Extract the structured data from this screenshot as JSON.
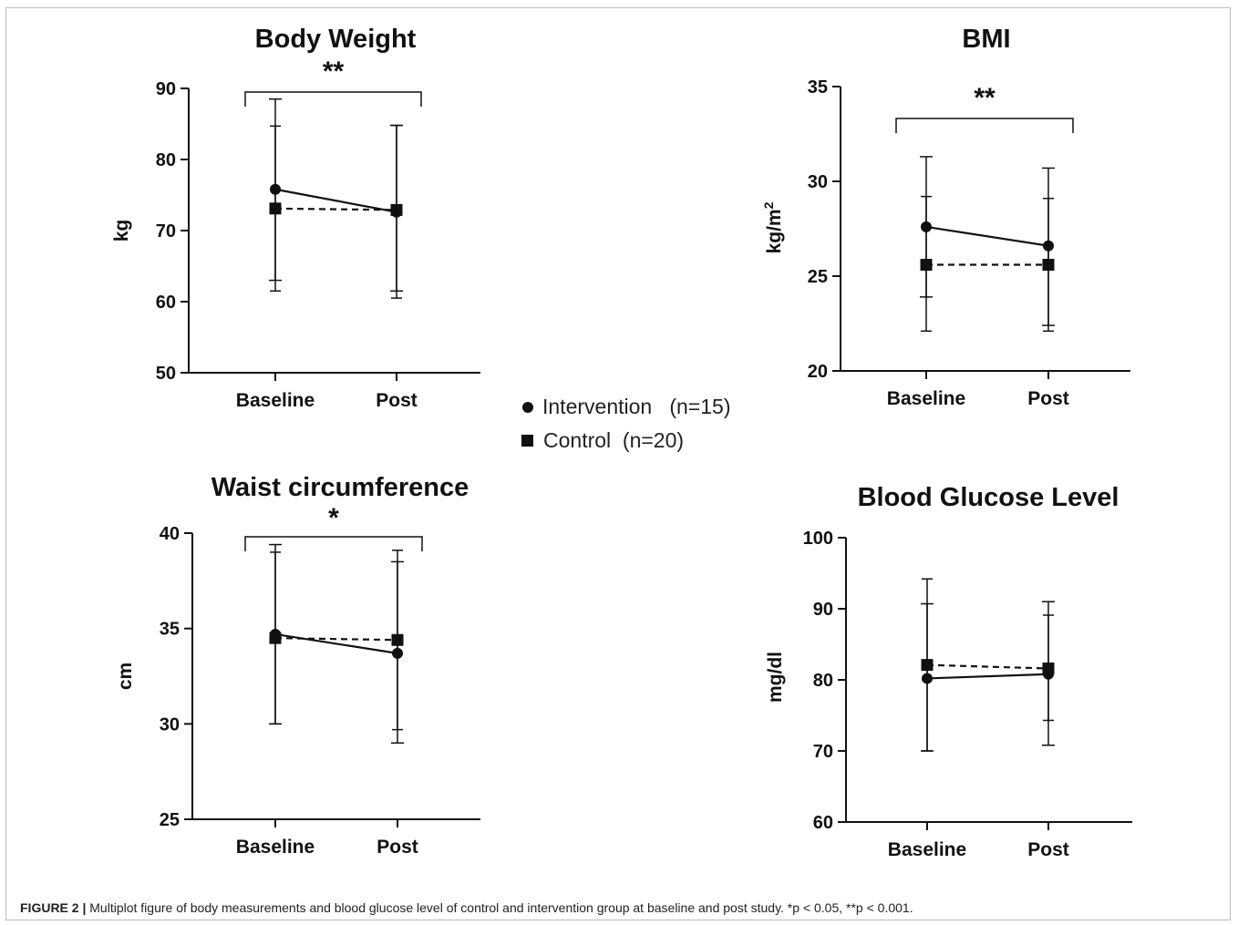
{
  "legend": {
    "intervention": "Intervention   (n=15)",
    "control": "Control  (n=20)"
  },
  "caption": {
    "label": "FIGURE 2 |",
    "text": " Multiplot figure of body measurements and blood glucose level of control and intervention group at baseline and post study. *p < 0.05, **p < 0.001."
  },
  "colors": {
    "ink": "#111111",
    "frame": "#bdbdbd"
  },
  "chart_data": [
    {
      "type": "line",
      "title": "Body Weight",
      "ylabel": "kg",
      "categories": [
        "Baseline",
        "Post"
      ],
      "ylim": [
        50,
        90
      ],
      "yticks": [
        50,
        60,
        70,
        80,
        90
      ],
      "significance": "**",
      "series": [
        {
          "name": "Intervention (n=15)",
          "marker": "circle",
          "line": "solid",
          "values": [
            75.8,
            72.6
          ],
          "err_low": [
            63.0,
            61.5
          ],
          "err_high": [
            88.5,
            84.8
          ]
        },
        {
          "name": "Control (n=20)",
          "marker": "square",
          "line": "dashed",
          "values": [
            73.1,
            72.9
          ],
          "err_low": [
            61.5,
            60.5
          ],
          "err_high": [
            84.7,
            84.8
          ]
        }
      ]
    },
    {
      "type": "line",
      "title": "BMI",
      "ylabel": "kg/m2",
      "categories": [
        "Baseline",
        "Post"
      ],
      "ylim": [
        20,
        35
      ],
      "yticks": [
        20,
        25,
        30,
        35
      ],
      "significance": "**",
      "series": [
        {
          "name": "Intervention (n=15)",
          "marker": "circle",
          "line": "solid",
          "values": [
            27.6,
            26.6
          ],
          "err_low": [
            23.9,
            22.4
          ],
          "err_high": [
            31.3,
            30.7
          ]
        },
        {
          "name": "Control (n=20)",
          "marker": "square",
          "line": "dashed",
          "values": [
            25.6,
            25.6
          ],
          "err_low": [
            22.1,
            22.1
          ],
          "err_high": [
            29.2,
            29.1
          ]
        }
      ]
    },
    {
      "type": "line",
      "title": "Waist circumference",
      "ylabel": "cm",
      "categories": [
        "Baseline",
        "Post"
      ],
      "ylim": [
        25,
        40
      ],
      "yticks": [
        25,
        30,
        35,
        40
      ],
      "significance": "*",
      "series": [
        {
          "name": "Intervention (n=15)",
          "marker": "circle",
          "line": "solid",
          "values": [
            34.7,
            33.7
          ],
          "err_low": [
            30.0,
            29.0
          ],
          "err_high": [
            39.4,
            38.5
          ]
        },
        {
          "name": "Control (n=20)",
          "marker": "square",
          "line": "dashed",
          "values": [
            34.5,
            34.4
          ],
          "err_low": [
            30.0,
            29.7
          ],
          "err_high": [
            39.0,
            39.1
          ]
        }
      ]
    },
    {
      "type": "line",
      "title": "Blood Glucose Level",
      "ylabel": "mg/dl",
      "categories": [
        "Baseline",
        "Post"
      ],
      "ylim": [
        60,
        100
      ],
      "yticks": [
        60,
        70,
        80,
        90,
        100
      ],
      "significance": "",
      "series": [
        {
          "name": "Intervention (n=15)",
          "marker": "circle",
          "line": "solid",
          "values": [
            80.2,
            80.8
          ],
          "err_low": [
            70.0,
            70.8
          ],
          "err_high": [
            90.7,
            91.0
          ]
        },
        {
          "name": "Control (n=20)",
          "marker": "square",
          "line": "dashed",
          "values": [
            82.1,
            81.6
          ],
          "err_low": [
            70.0,
            74.3
          ],
          "err_high": [
            94.2,
            89.1
          ]
        }
      ]
    }
  ]
}
